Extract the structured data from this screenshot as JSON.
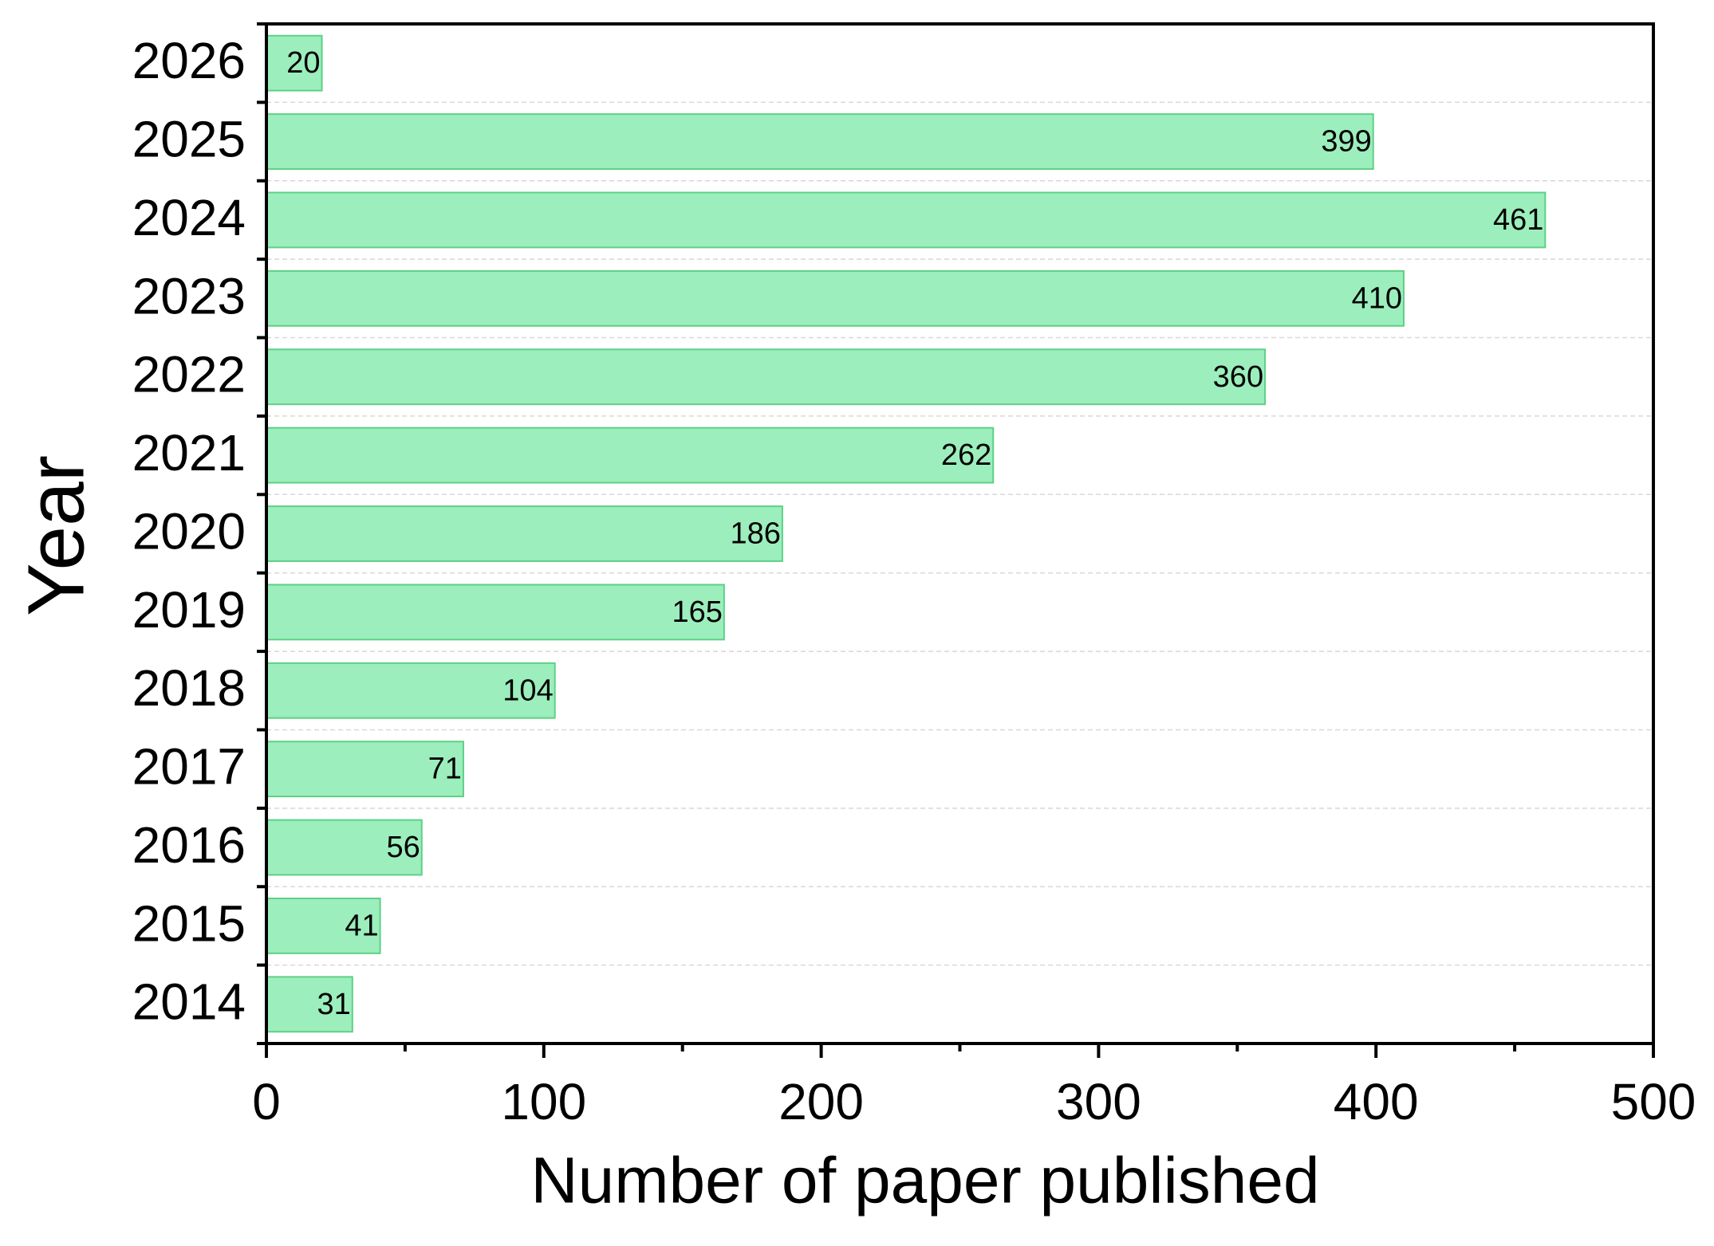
{
  "chart_data": {
    "type": "hbar",
    "xlabel": "Number of paper published",
    "ylabel": "Year",
    "categories": [
      "2026",
      "2025",
      "2024",
      "2023",
      "2022",
      "2021",
      "2020",
      "2019",
      "2018",
      "2017",
      "2016",
      "2015",
      "2014"
    ],
    "values": [
      20,
      399,
      461,
      410,
      360,
      262,
      186,
      165,
      104,
      71,
      56,
      41,
      31
    ],
    "color": "#9ceebd",
    "xlim": [
      0,
      500
    ],
    "xticks": [
      0,
      100,
      200,
      300,
      400,
      500
    ]
  }
}
